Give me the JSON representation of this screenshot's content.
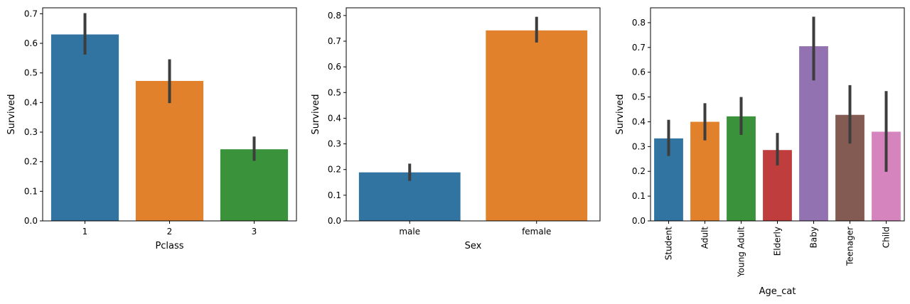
{
  "colors": {
    "palette": [
      "#3274a1",
      "#e1812c",
      "#3a923a",
      "#c03d3e",
      "#9372b2",
      "#845b53",
      "#d684bd"
    ],
    "errorbar": "#3d3d3d",
    "axis": "#000000"
  },
  "chart_data": [
    {
      "type": "bar",
      "xlabel": "Pclass",
      "ylabel": "Survived",
      "categories": [
        "1",
        "2",
        "3"
      ],
      "values": [
        0.63,
        0.473,
        0.242
      ],
      "err_low": [
        0.562,
        0.398,
        0.203
      ],
      "err_high": [
        0.702,
        0.546,
        0.285
      ],
      "ylim": [
        0,
        0.72
      ],
      "yticks": [
        "0.0",
        "0.1",
        "0.2",
        "0.3",
        "0.4",
        "0.5",
        "0.6",
        "0.7"
      ],
      "grid": false,
      "rotate_xticks": false
    },
    {
      "type": "bar",
      "xlabel": "Sex",
      "ylabel": "Survived",
      "categories": [
        "male",
        "female"
      ],
      "values": [
        0.189,
        0.742
      ],
      "err_low": [
        0.156,
        0.695
      ],
      "err_high": [
        0.223,
        0.795
      ],
      "ylim": [
        0,
        0.83
      ],
      "yticks": [
        "0.0",
        "0.1",
        "0.2",
        "0.3",
        "0.4",
        "0.5",
        "0.6",
        "0.7",
        "0.8"
      ],
      "grid": false,
      "rotate_xticks": false
    },
    {
      "type": "bar",
      "xlabel": "Age_cat",
      "ylabel": "Survived",
      "categories": [
        "Student",
        "Adult",
        "Young Adult",
        "Elderly",
        "Baby",
        "Teenager",
        "Child"
      ],
      "values": [
        0.333,
        0.4,
        0.422,
        0.286,
        0.705,
        0.428,
        0.36
      ],
      "err_low": [
        0.262,
        0.325,
        0.347,
        0.224,
        0.567,
        0.312,
        0.198
      ],
      "err_high": [
        0.408,
        0.475,
        0.5,
        0.355,
        0.824,
        0.548,
        0.524
      ],
      "ylim": [
        0,
        0.86
      ],
      "yticks": [
        "0.0",
        "0.1",
        "0.2",
        "0.3",
        "0.4",
        "0.5",
        "0.6",
        "0.7",
        "0.8"
      ],
      "grid": false,
      "rotate_xticks": true
    }
  ]
}
